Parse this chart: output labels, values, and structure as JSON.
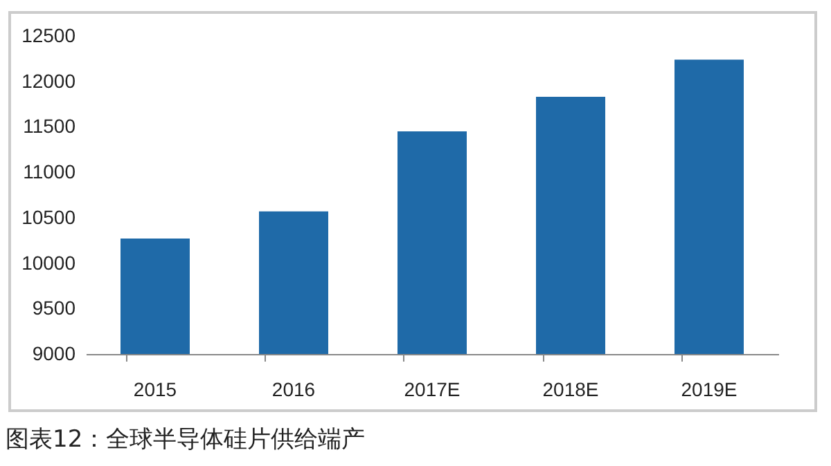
{
  "chart_data": {
    "type": "bar",
    "categories": [
      "2015",
      "2016",
      "2017E",
      "2018E",
      "2019E"
    ],
    "values": [
      10270,
      10570,
      11450,
      11830,
      12240
    ],
    "color": "#1f6aa8",
    "ylim": [
      9000,
      12500
    ],
    "yticks": [
      9000,
      9500,
      10000,
      10500,
      11000,
      11500,
      12000,
      12500
    ],
    "grid": false,
    "annotations": [
      "图表12：全球半导体硅片供给端产"
    ]
  }
}
